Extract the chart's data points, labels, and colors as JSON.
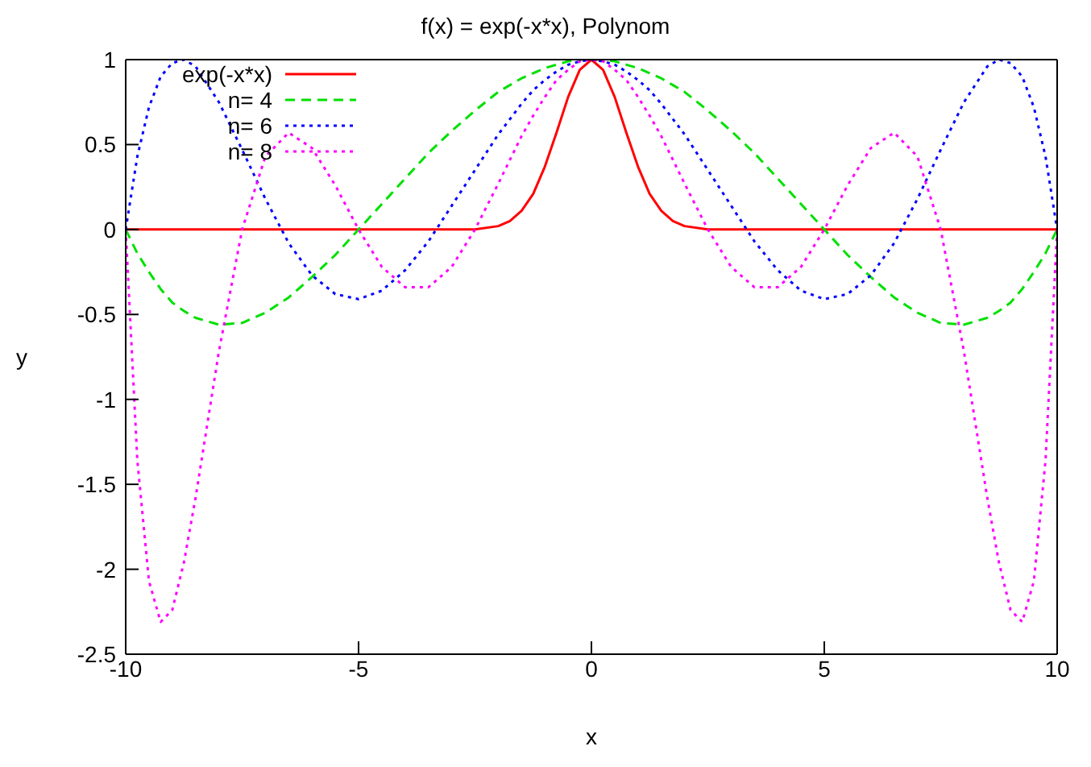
{
  "chart_data": {
    "type": "line",
    "title": "f(x) = exp(-x*x), Polynom",
    "xlabel": "x",
    "ylabel": "y",
    "x": [
      -10,
      -9.75,
      -9.5,
      -9.25,
      -9,
      -8.75,
      -8.5,
      -8,
      -7.5,
      -7,
      -6.5,
      -6,
      -5.5,
      -5,
      -4.5,
      -4,
      -3.5,
      -3,
      -2.5,
      -2,
      -1.75,
      -1.5,
      -1.25,
      -1,
      -0.75,
      -0.5,
      -0.25,
      0,
      0.25,
      0.5,
      0.75,
      1,
      1.25,
      1.5,
      1.75,
      2,
      2.5,
      3,
      3.5,
      4,
      4.5,
      5,
      5.5,
      6,
      6.5,
      7,
      7.5,
      8,
      8.5,
      8.75,
      9,
      9.25,
      9.5,
      9.75,
      10
    ],
    "series": [
      {
        "name": "exp(-x*x)",
        "color": "#ff0000",
        "line_style": "solid",
        "values": [
          0,
          0,
          0,
          0,
          0,
          0,
          0,
          0,
          0,
          0,
          0,
          0,
          0,
          0,
          0,
          0,
          0,
          0,
          0,
          0.02,
          0.05,
          0.11,
          0.21,
          0.37,
          0.57,
          0.78,
          0.94,
          1,
          0.94,
          0.78,
          0.57,
          0.37,
          0.21,
          0.11,
          0.05,
          0.02,
          0,
          0,
          0,
          0,
          0,
          0,
          0,
          0,
          0,
          0,
          0,
          0,
          0,
          0,
          0,
          0,
          0,
          0,
          0
        ]
      },
      {
        "name": "n= 4",
        "color": "#00e000",
        "line_style": "dashed",
        "values": [
          0,
          -0.14,
          -0.25,
          -0.35,
          -0.43,
          -0.48,
          -0.52,
          -0.56,
          -0.55,
          -0.49,
          -0.4,
          -0.28,
          -0.15,
          0,
          0.15,
          0.3,
          0.45,
          0.58,
          0.7,
          0.81,
          0.85,
          0.89,
          0.92,
          0.95,
          0.97,
          0.99,
          1,
          1,
          1,
          0.99,
          0.97,
          0.95,
          0.92,
          0.89,
          0.85,
          0.81,
          0.7,
          0.58,
          0.45,
          0.3,
          0.15,
          0,
          -0.15,
          -0.28,
          -0.4,
          -0.49,
          -0.55,
          -0.56,
          -0.52,
          -0.48,
          -0.43,
          -0.35,
          -0.25,
          -0.14,
          0
        ]
      },
      {
        "name": "n= 6",
        "color": "#0000ff",
        "line_style": "dotted",
        "values": [
          0,
          0.43,
          0.72,
          0.9,
          0.98,
          1,
          0.96,
          0.75,
          0.47,
          0.18,
          -0.08,
          -0.27,
          -0.38,
          -0.41,
          -0.36,
          -0.24,
          -0.07,
          0.14,
          0.35,
          0.56,
          0.65,
          0.74,
          0.82,
          0.88,
          0.93,
          0.97,
          0.99,
          1,
          0.99,
          0.97,
          0.93,
          0.88,
          0.82,
          0.74,
          0.65,
          0.56,
          0.35,
          0.14,
          -0.07,
          -0.24,
          -0.36,
          -0.41,
          -0.38,
          -0.27,
          -0.08,
          0.18,
          0.47,
          0.75,
          0.96,
          1,
          0.98,
          0.9,
          0.72,
          0.43,
          0
        ]
      },
      {
        "name": "n= 8",
        "color": "#ff00ff",
        "line_style": "dotted",
        "values": [
          0,
          -1.36,
          -2.07,
          -2.31,
          -2.24,
          -1.96,
          -1.58,
          -0.72,
          0,
          0.43,
          0.57,
          0.48,
          0.26,
          0,
          -0.22,
          -0.34,
          -0.34,
          -0.22,
          0,
          0.27,
          0.41,
          0.55,
          0.67,
          0.78,
          0.88,
          0.94,
          0.99,
          1,
          0.99,
          0.94,
          0.88,
          0.78,
          0.67,
          0.55,
          0.41,
          0.27,
          0,
          -0.22,
          -0.34,
          -0.34,
          -0.22,
          0,
          0.26,
          0.48,
          0.57,
          0.43,
          0,
          -0.72,
          -1.58,
          -1.96,
          -2.24,
          -2.31,
          -2.07,
          -1.36,
          0
        ]
      }
    ],
    "xlim": [
      -10,
      10
    ],
    "xticks": [
      -10,
      -5,
      0,
      5,
      10
    ],
    "ylim": [
      -2.5,
      1
    ],
    "yticks": [
      -2.5,
      -2,
      -1.5,
      -1,
      -0.5,
      0,
      0.5,
      1
    ],
    "legend": "top left",
    "grid": false,
    "marker": "none"
  }
}
